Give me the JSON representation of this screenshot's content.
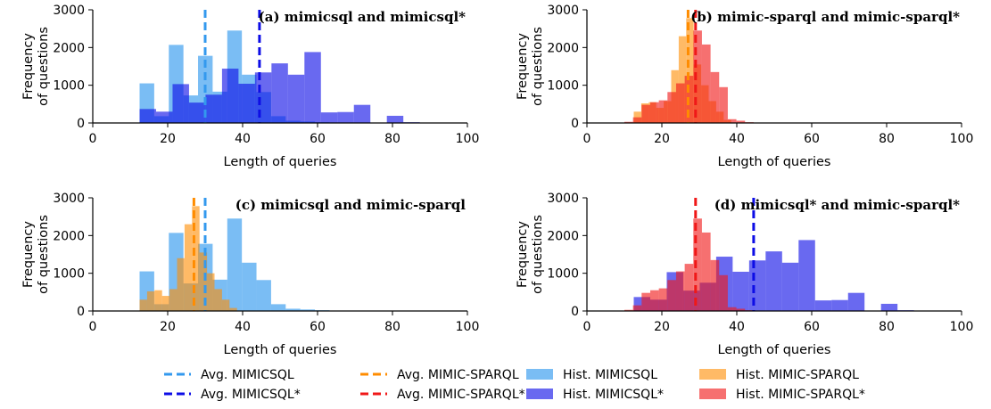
{
  "colors": {
    "mimicsql": "#3399ee",
    "mimicsql_star": "#0d0de6",
    "mimic_sparql": "#ff8c00",
    "mimic_sparql_star": "#f01818"
  },
  "chart_data": [
    {
      "type": "bar",
      "title": "(a) mimicsql and mimicsql*",
      "xlabel": "Length of queries",
      "ylabel": "Frequency\nof questions",
      "xlim": [
        0,
        100
      ],
      "ylim": [
        0,
        3000
      ],
      "xticks": [
        0,
        20,
        40,
        60,
        80,
        100
      ],
      "yticks": [
        0,
        1000,
        2000,
        3000
      ],
      "bin_width": 3.9,
      "hist": [
        {
          "key": "mimicsql",
          "bins_start": [
            12.5,
            16.4,
            20.3,
            24.2,
            28.1,
            32.0,
            35.9,
            39.8,
            43.7,
            47.6,
            51.5,
            55.4,
            59.3
          ],
          "values": [
            1050,
            180,
            2070,
            730,
            1780,
            830,
            2450,
            1280,
            820,
            180,
            60,
            40,
            20
          ]
        },
        {
          "key": "mimicsql_star",
          "bins_start": [
            12.5,
            16.9,
            21.3,
            25.7,
            30.1,
            34.5,
            38.9,
            43.3,
            47.7,
            52.1,
            56.5,
            60.9,
            65.3,
            69.7,
            74.1,
            78.5,
            82.9
          ],
          "values": [
            370,
            300,
            1030,
            540,
            750,
            1440,
            1040,
            1340,
            1580,
            1280,
            1880,
            280,
            290,
            480,
            10,
            190,
            20
          ]
        }
      ],
      "averages": [
        {
          "key": "mimicsql",
          "value": 30.0
        },
        {
          "key": "mimicsql_star",
          "value": 44.5
        }
      ]
    },
    {
      "type": "bar",
      "title": "(b) mimic-sparql and mimic-sparql*",
      "xlabel": "Length of queries",
      "ylabel": "Frequency\nof questions",
      "xlim": [
        0,
        100
      ],
      "ylim": [
        0,
        3000
      ],
      "xticks": [
        0,
        20,
        40,
        60,
        80,
        100
      ],
      "yticks": [
        0,
        1000,
        2000,
        3000
      ],
      "hist": [
        {
          "key": "mimic_sparql",
          "bins_start": [
            12.5,
            14.5,
            16.5,
            18.5,
            20.5,
            22.5,
            24.5,
            26.5,
            28.5,
            30.5,
            32.5,
            34.5,
            36.5
          ],
          "values": [
            300,
            520,
            550,
            400,
            580,
            1400,
            2300,
            2780,
            1550,
            1000,
            580,
            300,
            80
          ]
        },
        {
          "key": "mimic_sparql_star",
          "bins_start": [
            10.0,
            12.3,
            14.6,
            16.9,
            19.2,
            21.5,
            23.8,
            26.1,
            28.4,
            30.7,
            33.0,
            35.3,
            37.6,
            39.9,
            42.2
          ],
          "values": [
            30,
            150,
            480,
            550,
            600,
            820,
            1050,
            1250,
            2450,
            2080,
            1350,
            950,
            100,
            60,
            20
          ]
        }
      ],
      "averages": [
        {
          "key": "mimic_sparql",
          "value": 27.0
        },
        {
          "key": "mimic_sparql_star",
          "value": 29.0
        }
      ]
    },
    {
      "type": "bar",
      "title": "(c) mimicsql and mimic-sparql",
      "xlabel": "Length of queries",
      "ylabel": "Frequency\nof questions",
      "xlim": [
        0,
        100
      ],
      "ylim": [
        0,
        3000
      ],
      "xticks": [
        0,
        20,
        40,
        60,
        80,
        100
      ],
      "yticks": [
        0,
        1000,
        2000,
        3000
      ],
      "hist": [
        {
          "key": "mimicsql",
          "bins_start": [
            12.5,
            16.4,
            20.3,
            24.2,
            28.1,
            32.0,
            35.9,
            39.8,
            43.7,
            47.6,
            51.5,
            55.4,
            59.3
          ],
          "values": [
            1050,
            180,
            2070,
            730,
            1780,
            830,
            2450,
            1280,
            820,
            180,
            60,
            40,
            20
          ]
        },
        {
          "key": "mimic_sparql",
          "bins_start": [
            12.5,
            14.5,
            16.5,
            18.5,
            20.5,
            22.5,
            24.5,
            26.5,
            28.5,
            30.5,
            32.5,
            34.5,
            36.5
          ],
          "values": [
            300,
            520,
            550,
            400,
            580,
            1400,
            2300,
            2780,
            1550,
            1000,
            580,
            300,
            80
          ]
        }
      ],
      "averages": [
        {
          "key": "mimic_sparql",
          "value": 27.0
        },
        {
          "key": "mimicsql",
          "value": 30.0
        }
      ]
    },
    {
      "type": "bar",
      "title": "(d) mimicsql* and mimic-sparql*",
      "xlabel": "Length of queries",
      "ylabel": "Frequency\nof questions",
      "xlim": [
        0,
        100
      ],
      "ylim": [
        0,
        3000
      ],
      "xticks": [
        0,
        20,
        40,
        60,
        80,
        100
      ],
      "yticks": [
        0,
        1000,
        2000,
        3000
      ],
      "hist": [
        {
          "key": "mimicsql_star",
          "bins_start": [
            12.5,
            16.9,
            21.3,
            25.7,
            30.1,
            34.5,
            38.9,
            43.3,
            47.7,
            52.1,
            56.5,
            60.9,
            65.3,
            69.7,
            74.1,
            78.5,
            82.9
          ],
          "values": [
            370,
            300,
            1030,
            540,
            750,
            1440,
            1040,
            1340,
            1580,
            1280,
            1880,
            280,
            290,
            480,
            10,
            190,
            20
          ]
        },
        {
          "key": "mimic_sparql_star",
          "bins_start": [
            10.0,
            12.3,
            14.6,
            16.9,
            19.2,
            21.5,
            23.8,
            26.1,
            28.4,
            30.7,
            33.0,
            35.3,
            37.6,
            39.9,
            42.2
          ],
          "values": [
            30,
            150,
            480,
            550,
            600,
            820,
            1050,
            1250,
            2450,
            2080,
            1350,
            950,
            100,
            60,
            20
          ]
        }
      ],
      "averages": [
        {
          "key": "mimic_sparql_star",
          "value": 29.0
        },
        {
          "key": "mimicsql_star",
          "value": 44.5
        }
      ]
    }
  ],
  "legend": {
    "placement": "bottom",
    "entries": [
      {
        "kind": "avg",
        "key": "mimicsql",
        "label": "Avg. MIMICSQL"
      },
      {
        "kind": "avg",
        "key": "mimicsql_star",
        "label": "Avg. MIMICSQL*"
      },
      {
        "kind": "avg",
        "key": "mimic_sparql",
        "label": "Avg. MIMIC-SPARQL"
      },
      {
        "kind": "avg",
        "key": "mimic_sparql_star",
        "label": "Avg. MIMIC-SPARQL*"
      },
      {
        "kind": "hist",
        "key": "mimicsql",
        "label": "Hist. MIMICSQL"
      },
      {
        "kind": "hist",
        "key": "mimicsql_star",
        "label": "Hist. MIMICSQL*"
      },
      {
        "kind": "hist",
        "key": "mimic_sparql",
        "label": "Hist. MIMIC-SPARQL"
      },
      {
        "kind": "hist",
        "key": "mimic_sparql_star",
        "label": "Hist. MIMIC-SPARQL*"
      }
    ]
  }
}
